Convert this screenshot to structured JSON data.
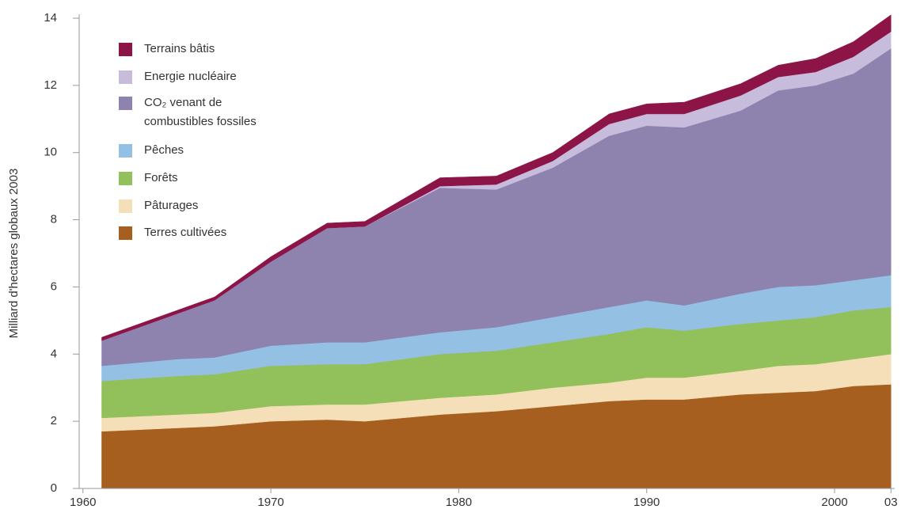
{
  "chart_data": {
    "type": "stacked_area",
    "y_label": "Milliard d'hectares globaux 2003",
    "x": [
      1961,
      1965,
      1967,
      1970,
      1973,
      1975,
      1979,
      1982,
      1985,
      1988,
      1990,
      1992,
      1995,
      1997,
      1999,
      2001,
      2003
    ],
    "series": [
      {
        "name": "Terres cultivées",
        "color": "#a65f1e",
        "values": [
          1.7,
          1.8,
          1.85,
          2.0,
          2.05,
          2.0,
          2.2,
          2.3,
          2.45,
          2.6,
          2.65,
          2.65,
          2.8,
          2.85,
          2.9,
          3.05,
          3.1
        ]
      },
      {
        "name": "Pâturages",
        "color": "#f5dfb8",
        "values": [
          0.4,
          0.4,
          0.4,
          0.45,
          0.45,
          0.5,
          0.5,
          0.5,
          0.55,
          0.55,
          0.65,
          0.65,
          0.7,
          0.8,
          0.8,
          0.8,
          0.9
        ]
      },
      {
        "name": "Forêts",
        "color": "#92c05a",
        "values": [
          1.1,
          1.15,
          1.15,
          1.2,
          1.2,
          1.2,
          1.3,
          1.3,
          1.35,
          1.45,
          1.5,
          1.4,
          1.4,
          1.35,
          1.4,
          1.45,
          1.4
        ]
      },
      {
        "name": "Pêches",
        "color": "#94c0e4",
        "values": [
          0.45,
          0.5,
          0.5,
          0.6,
          0.65,
          0.65,
          0.65,
          0.7,
          0.75,
          0.8,
          0.8,
          0.75,
          0.9,
          1.0,
          0.95,
          0.9,
          0.95
        ]
      },
      {
        "name": "CO₂ venant de\ncombustibles fossiles",
        "color": "#8e82ae",
        "values": [
          0.75,
          1.35,
          1.7,
          2.5,
          3.4,
          3.45,
          4.3,
          4.1,
          4.45,
          5.1,
          5.2,
          5.3,
          5.45,
          5.85,
          5.95,
          6.15,
          6.75
        ]
      },
      {
        "name": "Energie nucléaire",
        "color": "#c8bcdc",
        "values": [
          0,
          0,
          0,
          0,
          0,
          0,
          0.05,
          0.15,
          0.2,
          0.35,
          0.35,
          0.4,
          0.45,
          0.4,
          0.4,
          0.5,
          0.5
        ]
      },
      {
        "name": "Terrains bâtis",
        "color": "#8c1446",
        "values": [
          0.1,
          0.1,
          0.1,
          0.15,
          0.15,
          0.15,
          0.25,
          0.25,
          0.25,
          0.3,
          0.3,
          0.35,
          0.35,
          0.35,
          0.4,
          0.45,
          0.5
        ]
      }
    ],
    "xlim": [
      1959.8,
      2003.2
    ],
    "xticks": [
      1960,
      1970,
      1980,
      1990,
      2000,
      {
        "value": 2003,
        "label": "03"
      }
    ],
    "ylim": [
      0,
      14
    ],
    "yticks": [
      0,
      2,
      4,
      6,
      8,
      10,
      12,
      14
    ],
    "legend": "upper left"
  }
}
